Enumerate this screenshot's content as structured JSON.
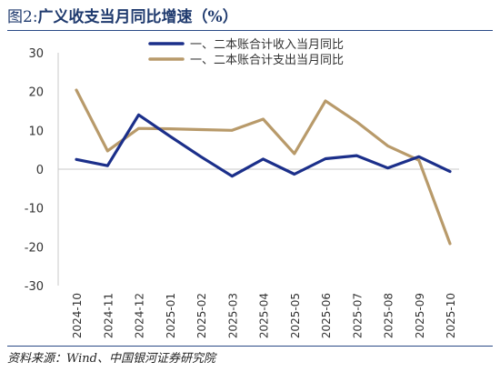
{
  "figure": {
    "label": "图2:",
    "title": "广义收支当月同比增速（%）",
    "source": "资料来源：Wind、中国银河证券研究院"
  },
  "colors": {
    "title": "#1f3a6e",
    "rule": "#2a4a86",
    "series_income": "#1b2f8a",
    "series_expense": "#b89a6a",
    "axis": "#c8c8c8",
    "text": "#333333"
  },
  "chart_data": {
    "type": "line",
    "categories": [
      "2024-10",
      "2024-11",
      "2024-12",
      "2025-01",
      "2025-02",
      "2025-03",
      "2025-04",
      "2025-05",
      "2025-06",
      "2025-07",
      "2025-08",
      "2025-09",
      "2025-10"
    ],
    "series": [
      {
        "name": "一、二本账合计收入当月同比",
        "color": "#1b2f8a",
        "values": [
          2.5,
          0.9,
          14.0,
          8.5,
          3.2,
          -1.8,
          2.6,
          -1.3,
          2.7,
          3.5,
          0.3,
          3.2,
          -0.6
        ]
      },
      {
        "name": "一、二本账合计支出当月同比",
        "color": "#b89a6a",
        "values": [
          20.4,
          4.7,
          10.5,
          10.4,
          10.2,
          10.0,
          12.9,
          4.0,
          17.6,
          12.2,
          6.0,
          2.3,
          -19.2
        ]
      }
    ],
    "yticks": [
      30,
      20,
      10,
      0,
      -10,
      -20,
      -30
    ],
    "ylim": [
      -30,
      30
    ],
    "legend_position": "top-center",
    "grid": false
  }
}
